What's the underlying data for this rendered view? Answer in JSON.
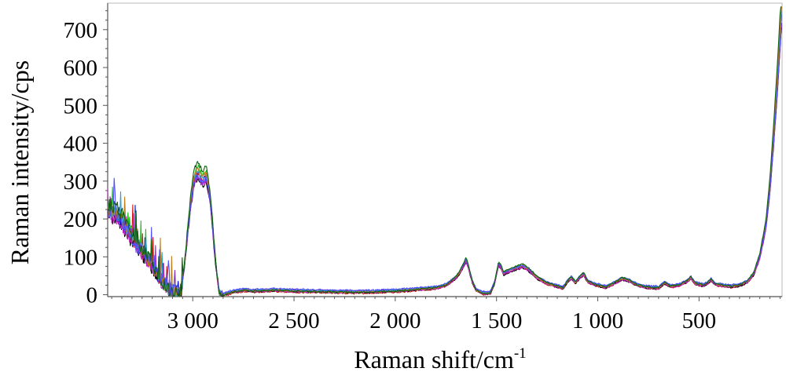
{
  "chart_data": {
    "type": "line",
    "title": "",
    "xlabel": "Raman shift/cm",
    "xlabel_superscript": "-1",
    "ylabel": "Raman intensity/cps",
    "xlim": [
      3420,
      90
    ],
    "ylim": [
      -5,
      770
    ],
    "x_reversed": true,
    "grid": false,
    "legend": "none",
    "x_ticks": [
      {
        "value": 3000,
        "label": "3 000"
      },
      {
        "value": 2500,
        "label": "2 500"
      },
      {
        "value": 2000,
        "label": "2 000"
      },
      {
        "value": 1500,
        "label": "1 500"
      },
      {
        "value": 1000,
        "label": "1 000"
      },
      {
        "value": 500,
        "label": "500"
      }
    ],
    "y_ticks": [
      {
        "value": 0,
        "label": "0"
      },
      {
        "value": 100,
        "label": "100"
      },
      {
        "value": 200,
        "label": "200"
      },
      {
        "value": 300,
        "label": "300"
      },
      {
        "value": 400,
        "label": "400"
      },
      {
        "value": 500,
        "label": "500"
      },
      {
        "value": 600,
        "label": "600"
      },
      {
        "value": 700,
        "label": "700"
      }
    ],
    "series_colors": [
      "#1010e0",
      "#20c020",
      "#d01818",
      "#8030a0",
      "#000000",
      "#c020c0",
      "#30a0d0",
      "#c08020",
      "#5050ff",
      "#106010"
    ],
    "base_series": [
      [
        3420,
        220
      ],
      [
        3380,
        210
      ],
      [
        3350,
        195
      ],
      [
        3320,
        165
      ],
      [
        3300,
        150
      ],
      [
        3270,
        125
      ],
      [
        3240,
        105
      ],
      [
        3210,
        85
      ],
      [
        3180,
        60
      ],
      [
        3150,
        35
      ],
      [
        3120,
        15
      ],
      [
        3090,
        5
      ],
      [
        3060,
        0
      ],
      [
        3040,
        80
      ],
      [
        3020,
        190
      ],
      [
        3000,
        280
      ],
      [
        2990,
        305
      ],
      [
        2975,
        320
      ],
      [
        2960,
        305
      ],
      [
        2950,
        300
      ],
      [
        2935,
        310
      ],
      [
        2925,
        290
      ],
      [
        2910,
        230
      ],
      [
        2890,
        100
      ],
      [
        2870,
        5
      ],
      [
        2850,
        0
      ],
      [
        2800,
        8
      ],
      [
        2750,
        12
      ],
      [
        2700,
        10
      ],
      [
        2600,
        12
      ],
      [
        2500,
        10
      ],
      [
        2400,
        9
      ],
      [
        2300,
        8
      ],
      [
        2200,
        7
      ],
      [
        2100,
        8
      ],
      [
        2000,
        10
      ],
      [
        1900,
        14
      ],
      [
        1800,
        18
      ],
      [
        1750,
        25
      ],
      [
        1700,
        45
      ],
      [
        1680,
        60
      ],
      [
        1660,
        80
      ],
      [
        1650,
        90
      ],
      [
        1640,
        75
      ],
      [
        1620,
        35
      ],
      [
        1600,
        12
      ],
      [
        1570,
        5
      ],
      [
        1550,
        3
      ],
      [
        1530,
        5
      ],
      [
        1510,
        30
      ],
      [
        1500,
        55
      ],
      [
        1490,
        80
      ],
      [
        1480,
        75
      ],
      [
        1465,
        55
      ],
      [
        1450,
        60
      ],
      [
        1400,
        70
      ],
      [
        1370,
        75
      ],
      [
        1340,
        65
      ],
      [
        1300,
        45
      ],
      [
        1250,
        30
      ],
      [
        1200,
        22
      ],
      [
        1170,
        18
      ],
      [
        1150,
        35
      ],
      [
        1130,
        45
      ],
      [
        1110,
        32
      ],
      [
        1090,
        45
      ],
      [
        1070,
        55
      ],
      [
        1050,
        35
      ],
      [
        1020,
        28
      ],
      [
        1000,
        25
      ],
      [
        960,
        20
      ],
      [
        920,
        30
      ],
      [
        880,
        42
      ],
      [
        850,
        38
      ],
      [
        800,
        25
      ],
      [
        760,
        20
      ],
      [
        700,
        18
      ],
      [
        670,
        32
      ],
      [
        640,
        22
      ],
      [
        600,
        25
      ],
      [
        560,
        35
      ],
      [
        540,
        45
      ],
      [
        520,
        30
      ],
      [
        480,
        25
      ],
      [
        460,
        30
      ],
      [
        440,
        40
      ],
      [
        420,
        28
      ],
      [
        380,
        24
      ],
      [
        340,
        22
      ],
      [
        300,
        25
      ],
      [
        260,
        35
      ],
      [
        230,
        55
      ],
      [
        200,
        100
      ],
      [
        170,
        180
      ],
      [
        150,
        280
      ],
      [
        130,
        420
      ],
      [
        110,
        580
      ],
      [
        95,
        720
      ],
      [
        90,
        740
      ]
    ]
  }
}
